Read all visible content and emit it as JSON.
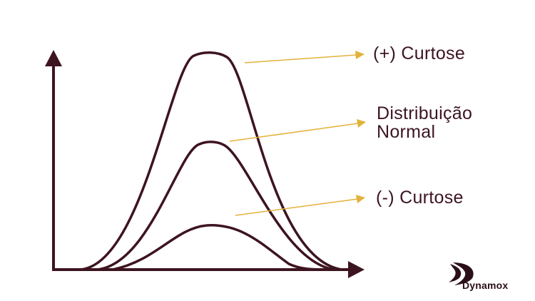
{
  "labels": {
    "positive_kurtosis": "(+) Curtose",
    "normal_distribution_line1": "Distribuição",
    "normal_distribution_line2": "Normal",
    "negative_kurtosis": "(-) Curtose"
  },
  "brand": {
    "name": "Dynamox"
  },
  "colors": {
    "curve": "#3d1420",
    "arrow": "#e3b23c",
    "text": "#3d1420"
  }
}
